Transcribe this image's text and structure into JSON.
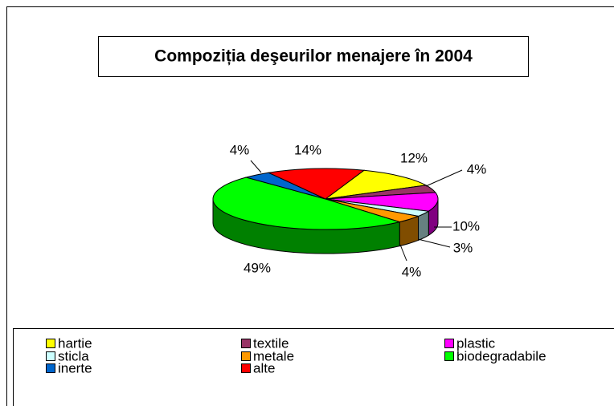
{
  "chart_data": {
    "type": "pie",
    "title": "Compoziția deşeurilor menajere în 2004",
    "categories": [
      "hartie",
      "textile",
      "plastic",
      "sticla",
      "metale",
      "biodegradabile",
      "inerte",
      "alte"
    ],
    "values": [
      12,
      4,
      10,
      3,
      4,
      49,
      4,
      14
    ],
    "value_labels": [
      "12%",
      "4%",
      "10%",
      "3%",
      "4%",
      "49%",
      "4%",
      "14%"
    ],
    "colors": [
      "#ffff00",
      "#993366",
      "#ff00ff",
      "#ccffff",
      "#ff9900",
      "#00ff00",
      "#0066cc",
      "#ff0000"
    ],
    "legend": "bottom"
  }
}
